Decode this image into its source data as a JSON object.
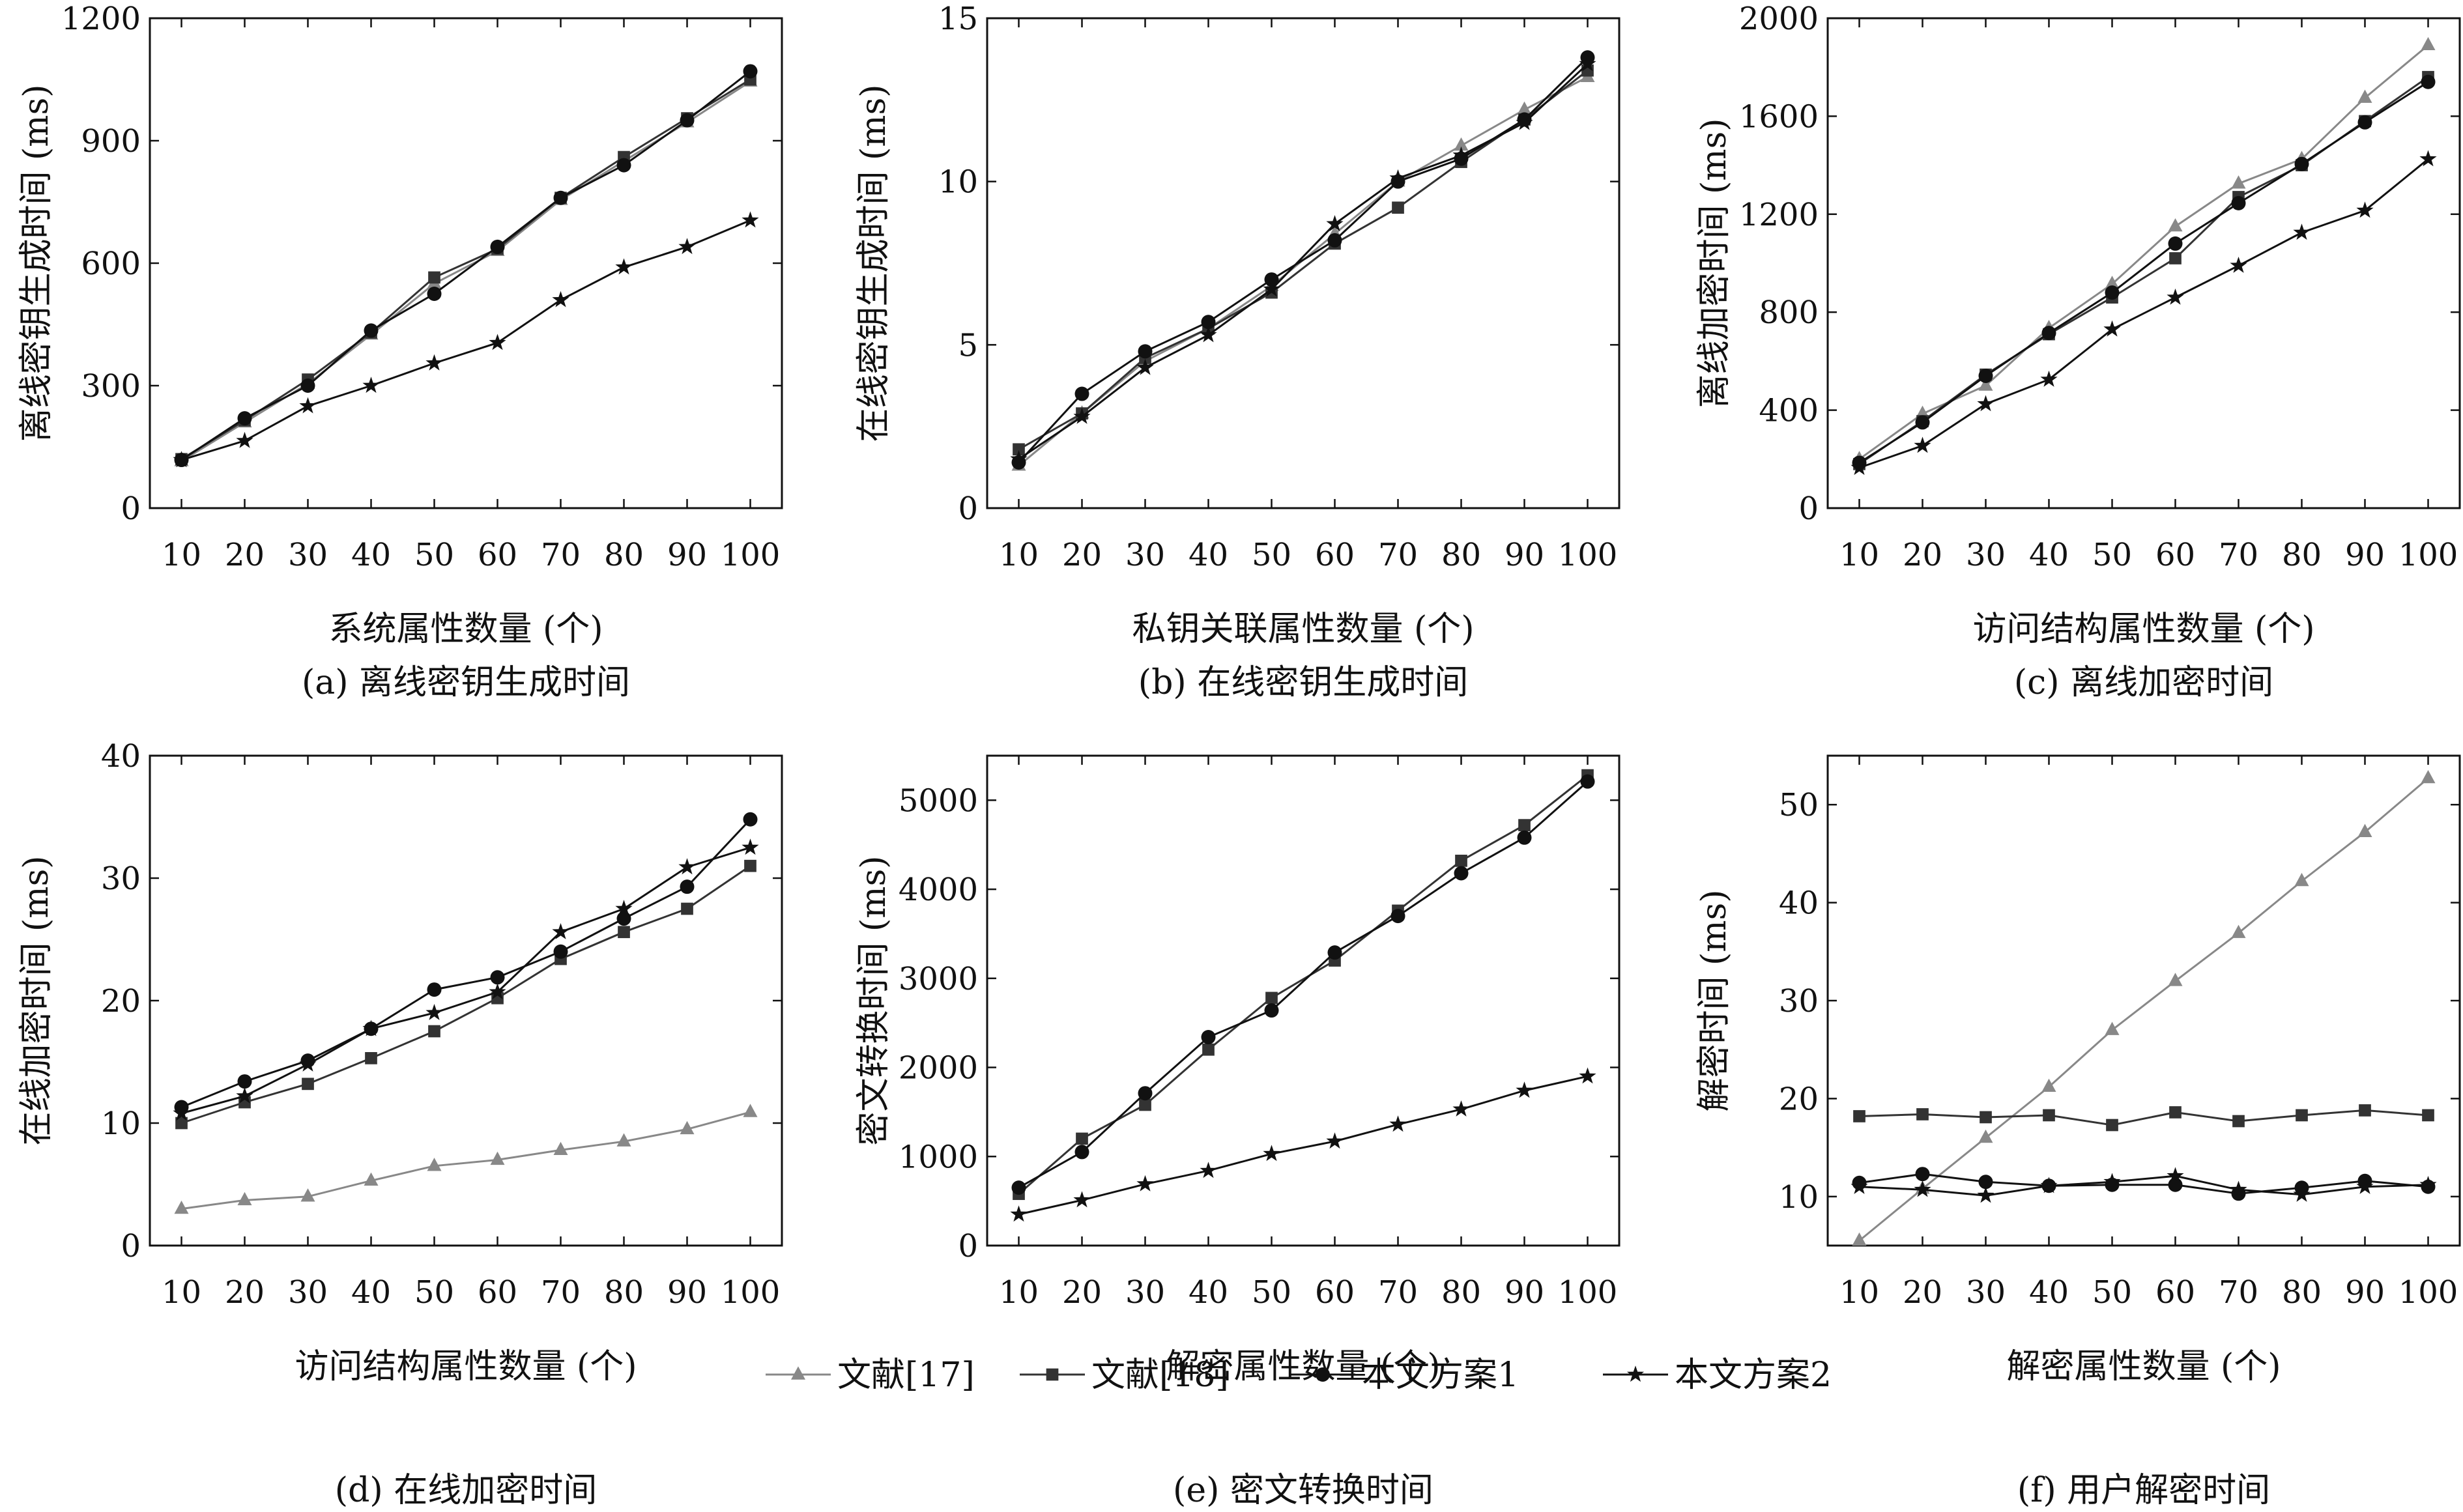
{
  "legend": {
    "items": [
      {
        "label": "文献[17]",
        "color": "#888888",
        "marker": "triangle"
      },
      {
        "label": "文献[18]",
        "color": "#333333",
        "marker": "square"
      },
      {
        "label": "本文方案1",
        "color": "#111111",
        "marker": "circle"
      },
      {
        "label": "本文方案2",
        "color": "#111111",
        "marker": "star"
      }
    ]
  },
  "chart_data": [
    {
      "type": "line",
      "caption": "(a) 离线密钥生成时间",
      "xlabel": "系统属性数量 (个)",
      "ylabel": "离线密钥生成时间 (ms)",
      "x": [
        10,
        20,
        30,
        40,
        50,
        60,
        70,
        80,
        90,
        100
      ],
      "ylim": [
        0,
        1200
      ],
      "yticks": [
        0,
        300,
        600,
        900,
        1200
      ],
      "series": [
        {
          "name": "文献[17]",
          "values": [
            115,
            210,
            305,
            425,
            550,
            630,
            755,
            850,
            945,
            1045
          ]
        },
        {
          "name": "文献[18]",
          "values": [
            120,
            215,
            315,
            430,
            565,
            635,
            760,
            860,
            955,
            1050
          ]
        },
        {
          "name": "本文方案1",
          "values": [
            118,
            220,
            300,
            435,
            525,
            640,
            760,
            840,
            950,
            1070
          ]
        },
        {
          "name": "本文方案2",
          "values": [
            118,
            165,
            250,
            300,
            355,
            405,
            510,
            590,
            640,
            705
          ]
        }
      ]
    },
    {
      "type": "line",
      "caption": "(b) 在线密钥生成时间",
      "xlabel": "私钥关联属性数量 (个)",
      "ylabel": "在线密钥生成时间 (ms)",
      "x": [
        10,
        20,
        30,
        40,
        50,
        60,
        70,
        80,
        90,
        100
      ],
      "ylim": [
        0,
        15
      ],
      "yticks": [
        0,
        5,
        10,
        15
      ],
      "series": [
        {
          "name": "文献[17]",
          "values": [
            1.3,
            2.9,
            4.5,
            5.5,
            6.8,
            8.4,
            10.0,
            11.1,
            12.2,
            13.2
          ]
        },
        {
          "name": "文献[18]",
          "values": [
            1.8,
            2.9,
            4.6,
            5.5,
            6.6,
            8.1,
            9.2,
            10.6,
            11.9,
            13.4
          ]
        },
        {
          "name": "本文方案1",
          "values": [
            1.4,
            3.5,
            4.8,
            5.7,
            7.0,
            8.2,
            10.0,
            10.7,
            11.9,
            13.8
          ]
        },
        {
          "name": "本文方案2",
          "values": [
            1.5,
            2.8,
            4.3,
            5.3,
            6.7,
            8.7,
            10.1,
            10.8,
            11.8,
            13.6
          ]
        }
      ]
    },
    {
      "type": "line",
      "caption": "(c) 离线加密时间",
      "xlabel": "访问结构属性数量 (个)",
      "ylabel": "离线加密时间 (ms)",
      "x": [
        10,
        20,
        30,
        40,
        50,
        60,
        70,
        80,
        90,
        100
      ],
      "ylim": [
        0,
        2000
      ],
      "yticks": [
        0,
        400,
        800,
        1200,
        1600,
        2000
      ],
      "series": [
        {
          "name": "文献[17]",
          "values": [
            200,
            385,
            500,
            735,
            915,
            1150,
            1325,
            1425,
            1675,
            1890
          ]
        },
        {
          "name": "文献[18]",
          "values": [
            180,
            355,
            545,
            710,
            860,
            1020,
            1270,
            1400,
            1580,
            1760
          ]
        },
        {
          "name": "本文方案1",
          "values": [
            185,
            350,
            540,
            715,
            880,
            1080,
            1245,
            1405,
            1575,
            1740
          ]
        },
        {
          "name": "本文方案2",
          "values": [
            165,
            255,
            425,
            525,
            730,
            860,
            990,
            1125,
            1215,
            1425
          ]
        }
      ]
    },
    {
      "type": "line",
      "caption": "(d) 在线加密时间",
      "xlabel": "访问结构属性数量 (个)",
      "ylabel": "在线加密时间 (ms)",
      "x": [
        10,
        20,
        30,
        40,
        50,
        60,
        70,
        80,
        90,
        100
      ],
      "ylim": [
        0,
        40
      ],
      "yticks": [
        0,
        10,
        20,
        30,
        40
      ],
      "series": [
        {
          "name": "文献[17]",
          "values": [
            3.0,
            3.7,
            4.0,
            5.3,
            6.5,
            7.0,
            7.8,
            8.5,
            9.5,
            10.9
          ]
        },
        {
          "name": "文献[18]",
          "values": [
            10.0,
            11.7,
            13.2,
            15.3,
            17.5,
            20.2,
            23.4,
            25.6,
            27.5,
            31.0
          ]
        },
        {
          "name": "本文方案1",
          "values": [
            11.3,
            13.4,
            15.1,
            17.7,
            20.9,
            21.9,
            24.0,
            26.7,
            29.3,
            34.8
          ]
        },
        {
          "name": "本文方案2",
          "values": [
            10.8,
            12.2,
            14.8,
            17.7,
            19.0,
            20.7,
            25.6,
            27.5,
            30.9,
            32.5
          ]
        }
      ]
    },
    {
      "type": "line",
      "caption": "(e) 密文转换时间",
      "xlabel": "解密属性数量 (个)",
      "ylabel": "密文转换时间 (ms)",
      "x": [
        10,
        20,
        30,
        40,
        50,
        60,
        70,
        80,
        90,
        100
      ],
      "ylim": [
        0,
        5500
      ],
      "yticks": [
        0,
        1000,
        2000,
        3000,
        4000,
        5000
      ],
      "series": [
        {
          "name": "文献[18]",
          "values": [
            580,
            1200,
            1580,
            2200,
            2780,
            3200,
            3760,
            4320,
            4720,
            5280
          ]
        },
        {
          "name": "本文方案1",
          "values": [
            650,
            1050,
            1710,
            2340,
            2640,
            3290,
            3700,
            4180,
            4580,
            5210
          ]
        },
        {
          "name": "本文方案2",
          "values": [
            350,
            510,
            690,
            840,
            1030,
            1170,
            1360,
            1530,
            1740,
            1900
          ]
        }
      ]
    },
    {
      "type": "line",
      "caption": "(f) 用户解密时间",
      "xlabel": "解密属性数量 (个)",
      "ylabel": "解密时间 (ms)",
      "x": [
        10,
        20,
        30,
        40,
        50,
        60,
        70,
        80,
        90,
        100
      ],
      "ylim": [
        5,
        55
      ],
      "yticks": [
        10,
        20,
        30,
        40,
        50
      ],
      "series": [
        {
          "name": "文献[17]",
          "values": [
            5.5,
            10.8,
            16.0,
            21.2,
            27.0,
            32.0,
            36.9,
            42.2,
            47.2,
            52.7
          ]
        },
        {
          "name": "文献[18]",
          "values": [
            18.2,
            18.4,
            18.1,
            18.3,
            17.3,
            18.6,
            17.7,
            18.3,
            18.8,
            18.3
          ]
        },
        {
          "name": "本文方案1",
          "values": [
            11.4,
            12.3,
            11.5,
            11.1,
            11.2,
            11.2,
            10.3,
            10.9,
            11.6,
            11.0
          ]
        },
        {
          "name": "本文方案2",
          "values": [
            11.0,
            10.7,
            10.1,
            11.1,
            11.5,
            12.1,
            10.7,
            10.2,
            11.0,
            11.2
          ]
        }
      ]
    }
  ]
}
